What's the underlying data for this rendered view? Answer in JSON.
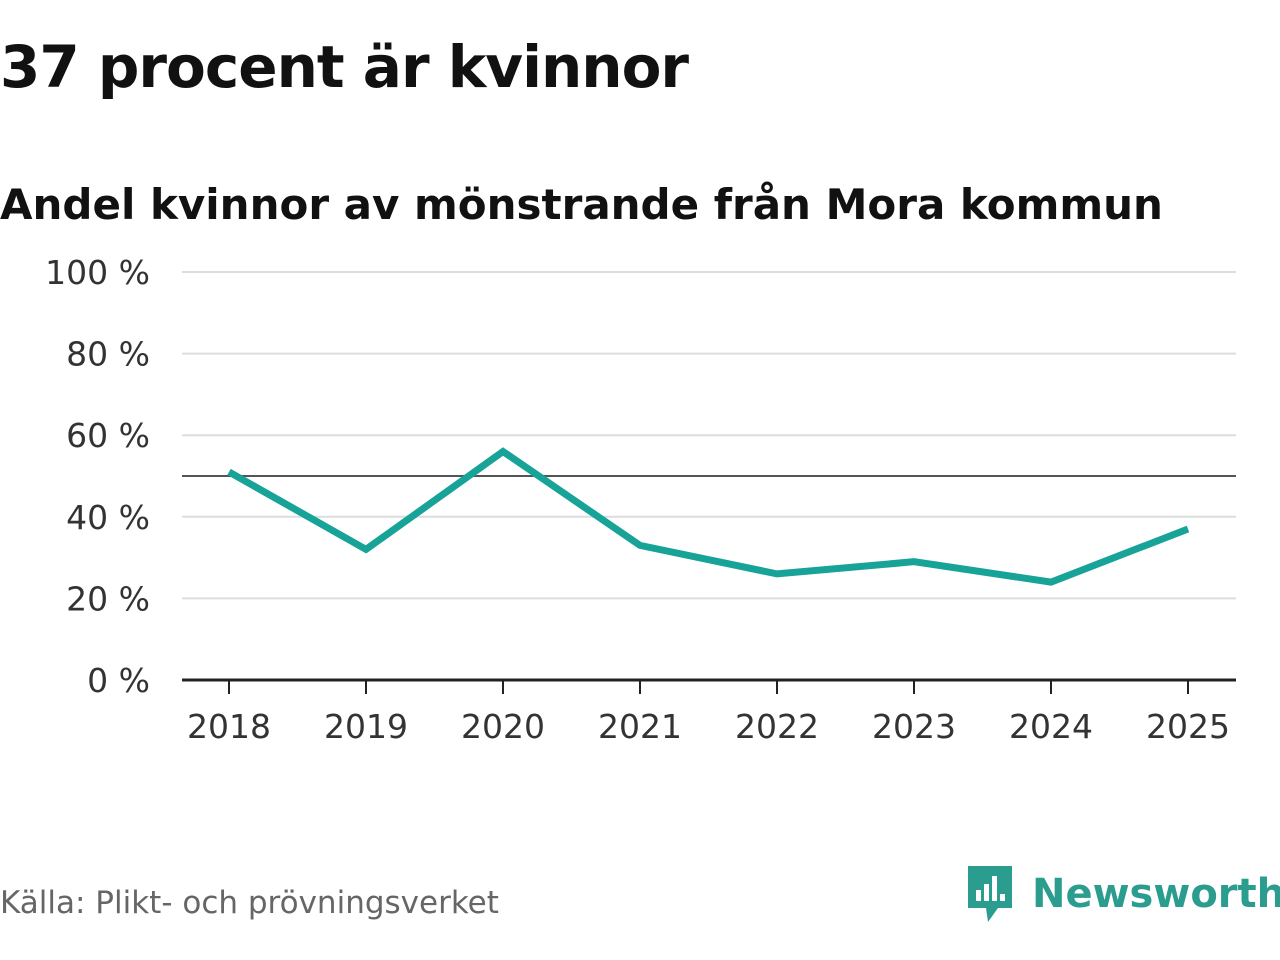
{
  "header": {
    "title": "37 procent är kvinnor",
    "subtitle": "Andel kvinnor av mönstrande från Mora kommun"
  },
  "footer": {
    "source": "Källa: Plikt- och prövningsverket",
    "brand": "Newsworthy",
    "brand_icon": "newsworthy-logo-icon"
  },
  "colors": {
    "line": "#17a398",
    "grid": "#dddddd",
    "reference": "#555555",
    "axis": "#222222",
    "brand": "#2a9d8f"
  },
  "chart_data": {
    "type": "line",
    "title": "37 procent är kvinnor",
    "subtitle": "Andel kvinnor av mönstrande från Mora kommun",
    "xlabel": "",
    "ylabel": "",
    "categories": [
      "2018",
      "2019",
      "2020",
      "2021",
      "2022",
      "2023",
      "2024",
      "2025"
    ],
    "series": [
      {
        "name": "Andel kvinnor",
        "values": [
          51,
          32,
          56,
          33,
          26,
          29,
          24,
          37
        ]
      }
    ],
    "ylim": [
      0,
      100
    ],
    "yticks": [
      0,
      20,
      40,
      60,
      80,
      100
    ],
    "ytick_labels": [
      "0 %",
      "20 %",
      "40 %",
      "60 %",
      "80 %",
      "100 %"
    ],
    "reference_line": 50,
    "grid": true,
    "legend": "none"
  }
}
